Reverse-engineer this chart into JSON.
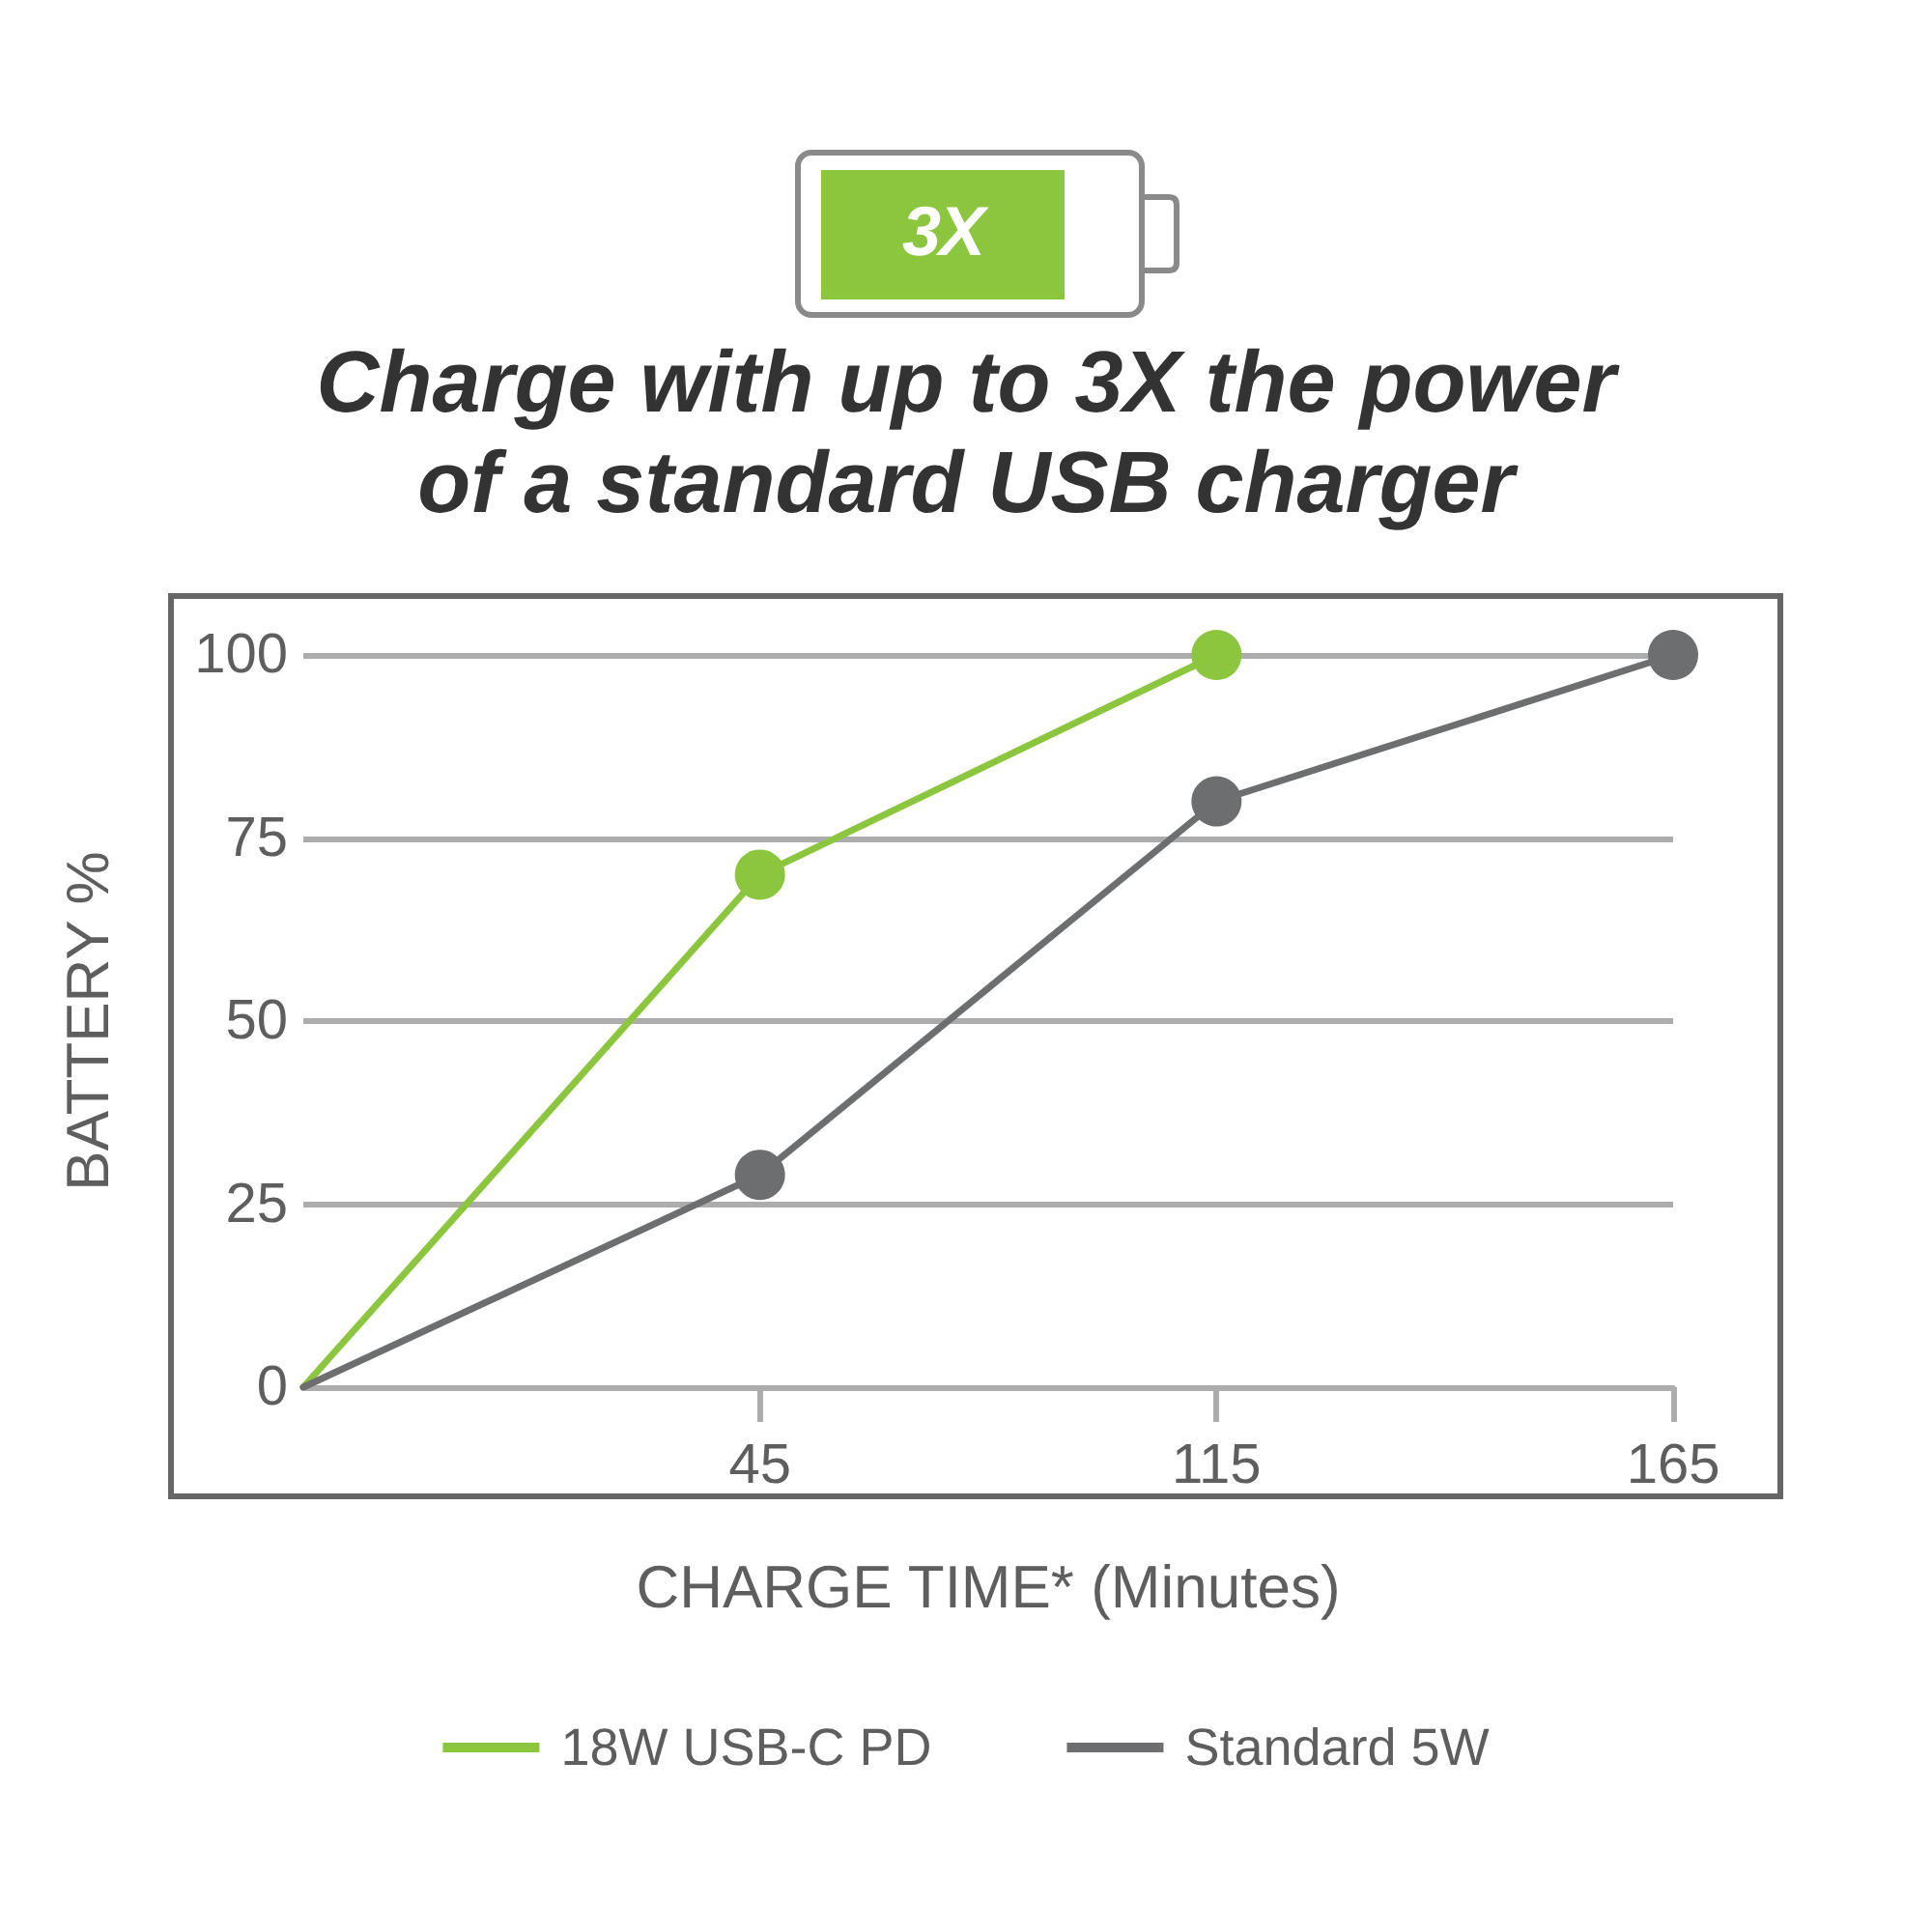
{
  "chart_data": {
    "type": "line",
    "title": "Charge with up to 3X the power of a standard USB charger",
    "xlabel": "CHARGE TIME* (Minutes)",
    "ylabel": "BATTERY %",
    "annotations": [
      "3X"
    ],
    "categories": [
      null,
      "45",
      "115",
      "165"
    ],
    "series": [
      {
        "name": "18W USB-C PD",
        "color": "#8cc63f",
        "values": [
          0,
          70,
          100,
          null
        ]
      },
      {
        "name": "Standard 5W",
        "color": "#6d6e70",
        "values": [
          0,
          29,
          80,
          100
        ]
      }
    ],
    "ylim": [
      0,
      100
    ],
    "yticks": [
      0,
      25,
      50,
      75,
      100
    ],
    "grid": "y",
    "legend": "bottom",
    "marker": "circle",
    "line_style": "solid"
  }
}
